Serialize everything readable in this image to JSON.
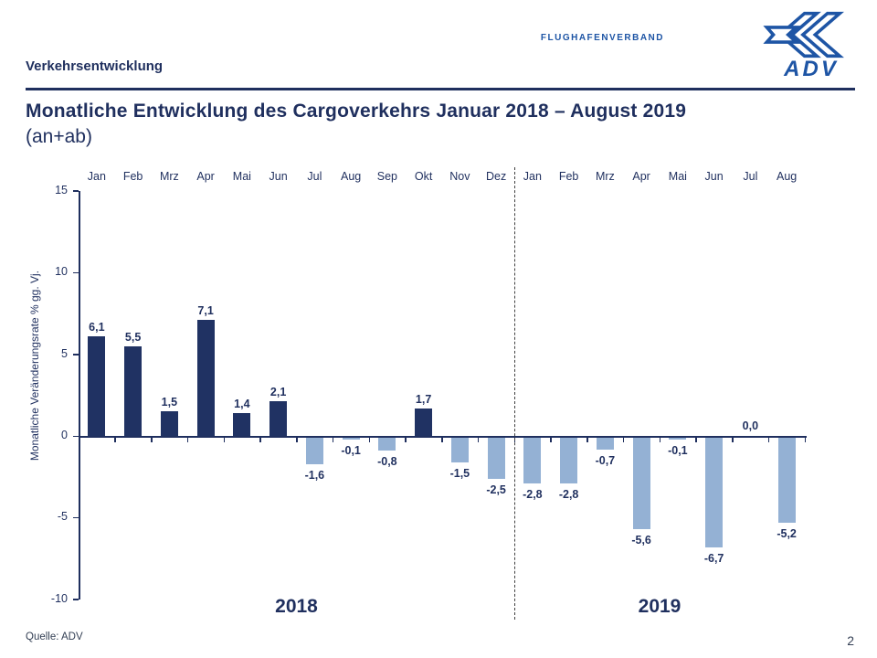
{
  "header": {
    "eyebrow": "Verkehrsentwicklung",
    "title": "Monatliche Entwicklung des Cargoverkehrs Januar 2018 – August 2019",
    "subtitle": "(an+ab)",
    "logo": {
      "brand": "FLUGHAFENVERBAND",
      "name": "ADV"
    }
  },
  "footer": {
    "source": "Quelle: ADV",
    "page_number": "2"
  },
  "colors": {
    "navy": "#1f2f5e",
    "positive_bar": "#203263",
    "negative_bar": "#94b1d4",
    "logo_blue": "#1e55a5",
    "dash": "#404040"
  },
  "chart_data": {
    "type": "bar",
    "ylabel": "Monatliche Veränderungsrate % gg. Vj.",
    "ylim": [
      -10,
      15
    ],
    "yticks": [
      15,
      10,
      5,
      0,
      -5,
      -10
    ],
    "grid": "off",
    "categories": [
      "Jan",
      "Feb",
      "Mrz",
      "Apr",
      "Mai",
      "Jun",
      "Jul",
      "Aug",
      "Sep",
      "Okt",
      "Nov",
      "Dez",
      "Jan",
      "Feb",
      "Mrz",
      "Apr",
      "Mai",
      "Jun",
      "Jul",
      "Aug"
    ],
    "values": [
      6.1,
      5.5,
      1.5,
      7.1,
      1.4,
      2.1,
      -1.6,
      -0.1,
      -0.8,
      1.7,
      -1.5,
      -2.5,
      -2.8,
      -2.8,
      -0.7,
      -5.6,
      -0.1,
      -6.7,
      0.0,
      -5.2
    ],
    "value_labels": [
      "6,1",
      "5,5",
      "1,5",
      "7,1",
      "1,4",
      "2,1",
      "-1,6",
      "-0,1",
      "-0,8",
      "1,7",
      "-1,5",
      "-2,5",
      "-2,8",
      "-2,8",
      "-0,7",
      "-5,6",
      "-0,1",
      "-6,7",
      "0,0",
      "-5,2"
    ],
    "year_groups": [
      {
        "label": "2018",
        "months": 12
      },
      {
        "label": "2019",
        "months": 8
      }
    ]
  }
}
